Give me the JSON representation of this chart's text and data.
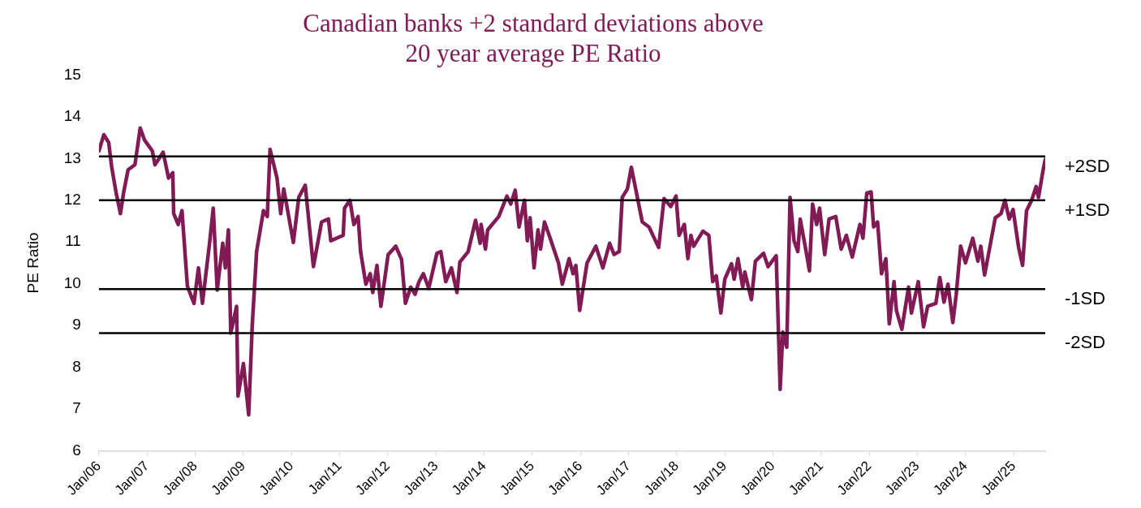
{
  "chart_data": {
    "type": "line",
    "title": "Canadian banks +2 standard deviations above\n20 year average PE Ratio",
    "ylabel": "PE Ratio",
    "x": [
      "2006-01-01",
      "2006-02-07",
      "2006-03-16",
      "2006-04-08",
      "2006-05-10",
      "2006-06-13",
      "2006-07-08",
      "2006-08-10",
      "2006-10-01",
      "2006-11-10",
      "2006-12-13",
      "2007-02-10",
      "2007-03-02",
      "2007-05-03",
      "2007-06-13",
      "2007-07-15",
      "2007-07-22",
      "2007-08-25",
      "2007-09-23",
      "2007-11-03",
      "2007-12-23",
      "2008-01-26",
      "2008-02-25",
      "2008-04-19",
      "2008-05-17",
      "2008-06-16",
      "2008-07-28",
      "2008-08-17",
      "2008-09-09",
      "2008-09-27",
      "2008-11-10",
      "2008-11-21",
      "2009-01-01",
      "2009-02-10",
      "2009-03-09",
      "2009-04-11",
      "2009-06-02",
      "2009-07-01",
      "2009-07-22",
      "2009-09-13",
      "2009-10-11",
      "2009-11-03",
      "2010-01-15",
      "2010-02-25",
      "2010-04-15",
      "2010-06-16",
      "2010-08-17",
      "2010-10-08",
      "2010-10-26",
      "2011-01-28",
      "2011-02-07",
      "2011-03-20",
      "2011-04-19",
      "2011-05-21",
      "2011-06-09",
      "2011-07-19",
      "2011-08-21",
      "2011-09-09",
      "2011-10-11",
      "2011-11-10",
      "2012-01-04",
      "2012-03-02",
      "2012-04-15",
      "2012-05-14",
      "2012-06-23",
      "2012-07-26",
      "2012-08-25",
      "2012-09-27",
      "2012-11-07",
      "2013-01-08",
      "2013-02-07",
      "2013-03-16",
      "2013-04-28",
      "2013-06-09",
      "2013-07-01",
      "2013-09-02",
      "2013-10-28",
      "2013-12-02",
      "2013-12-09",
      "2014-01-11",
      "2014-01-28",
      "2014-04-22",
      "2014-06-23",
      "2014-07-22",
      "2014-08-25",
      "2014-09-23",
      "2014-11-03",
      "2014-11-25",
      "2014-12-16",
      "2015-01-15",
      "2015-02-14",
      "2015-03-05",
      "2015-04-04",
      "2015-05-17",
      "2015-07-19",
      "2015-08-17",
      "2015-10-08",
      "2015-11-07",
      "2015-11-28",
      "2015-12-27",
      "2016-02-21",
      "2016-04-28",
      "2016-06-20",
      "2016-08-10",
      "2016-09-13",
      "2016-10-22",
      "2016-11-14",
      "2016-12-23",
      "2017-01-22",
      "2017-03-13",
      "2017-04-15",
      "2017-06-05",
      "2017-08-17",
      "2017-09-27",
      "2017-11-17",
      "2017-12-27",
      "2018-01-19",
      "2018-02-28",
      "2018-03-27",
      "2018-04-19",
      "2018-05-10",
      "2018-07-19",
      "2018-09-02",
      "2018-10-01",
      "2018-10-28",
      "2018-12-02",
      "2019-01-01",
      "2019-02-21",
      "2019-03-13",
      "2019-04-11",
      "2019-05-17",
      "2019-06-02",
      "2019-07-22",
      "2019-08-21",
      "2019-10-22",
      "2019-11-25",
      "2020-01-26",
      "2020-02-25",
      "2020-03-16",
      "2020-04-15",
      "2020-05-10",
      "2020-06-09",
      "2020-07-08",
      "2020-07-26",
      "2020-09-09",
      "2020-10-04",
      "2020-10-28",
      "2020-11-28",
      "2020-12-20",
      "2021-01-28",
      "2021-03-02",
      "2021-04-22",
      "2021-06-02",
      "2021-07-11",
      "2021-08-25",
      "2021-10-22",
      "2021-11-14",
      "2021-12-13",
      "2022-01-15",
      "2022-02-03",
      "2022-03-05",
      "2022-04-04",
      "2022-05-07",
      "2022-06-02",
      "2022-07-08",
      "2022-07-26",
      "2022-09-05",
      "2022-10-26",
      "2022-11-17",
      "2023-01-08",
      "2023-02-17",
      "2023-03-20",
      "2023-05-21",
      "2023-06-20",
      "2023-07-22",
      "2023-08-21",
      "2023-09-27",
      "2023-10-22",
      "2023-11-25",
      "2024-01-01",
      "2024-02-25",
      "2024-04-04",
      "2024-04-26",
      "2024-05-25",
      "2024-06-23",
      "2024-08-14",
      "2024-09-27",
      "2024-10-26",
      "2024-11-28",
      "2024-12-27",
      "2025-02-07",
      "2025-03-09",
      "2025-04-08",
      "2025-05-17",
      "2025-06-20",
      "2025-07-08",
      "2025-08-10",
      "2025-08-28"
    ],
    "series": [
      {
        "color": "#821a55",
        "values": [
          13.18,
          13.57,
          13.38,
          12.79,
          12.2,
          11.68,
          12.2,
          12.73,
          12.85,
          13.73,
          13.44,
          13.18,
          12.85,
          13.15,
          12.53,
          12.66,
          11.68,
          11.42,
          11.75,
          9.94,
          9.53,
          10.38,
          9.53,
          10.97,
          11.81,
          9.85,
          10.97,
          10.38,
          11.29,
          8.82,
          9.46,
          7.31,
          8.09,
          6.86,
          9.01,
          10.77,
          11.75,
          11.61,
          13.22,
          12.53,
          11.68,
          12.27,
          10.99,
          12.07,
          12.36,
          10.41,
          11.48,
          11.55,
          11.03,
          11.16,
          11.81,
          12.0,
          11.42,
          11.61,
          10.77,
          9.99,
          10.24,
          9.79,
          10.44,
          9.46,
          10.7,
          10.9,
          10.58,
          9.53,
          9.92,
          9.75,
          10.05,
          10.24,
          9.89,
          10.73,
          10.77,
          10.05,
          10.38,
          9.79,
          10.52,
          10.77,
          11.52,
          10.97,
          11.42,
          10.83,
          11.29,
          11.61,
          12.1,
          11.91,
          12.24,
          11.36,
          12.0,
          11.03,
          11.58,
          10.38,
          11.29,
          10.83,
          11.48,
          11.09,
          10.5,
          9.99,
          10.6,
          10.24,
          10.44,
          9.36,
          10.5,
          10.9,
          10.38,
          10.97,
          10.7,
          10.77,
          12.07,
          12.27,
          12.79,
          12.0,
          11.48,
          11.36,
          10.87,
          12.04,
          11.85,
          12.1,
          11.16,
          11.42,
          10.6,
          11.16,
          10.9,
          11.26,
          11.16,
          10.05,
          10.19,
          9.3,
          10.11,
          10.48,
          10.11,
          10.6,
          9.92,
          10.28,
          9.62,
          10.54,
          10.73,
          10.41,
          10.67,
          7.47,
          8.84,
          8.48,
          12.07,
          11.03,
          10.77,
          11.55,
          10.77,
          10.31,
          11.91,
          11.42,
          11.81,
          10.7,
          11.55,
          11.61,
          10.83,
          11.16,
          10.64,
          11.42,
          11.09,
          12.17,
          12.2,
          11.36,
          11.48,
          10.24,
          10.6,
          9.04,
          10.05,
          9.36,
          8.91,
          9.92,
          9.3,
          10.05,
          8.97,
          9.46,
          9.53,
          10.15,
          9.56,
          9.99,
          9.07,
          9.72,
          10.9,
          10.5,
          11.09,
          10.54,
          10.9,
          10.21,
          10.7,
          11.58,
          11.68,
          12.0,
          11.55,
          11.78,
          10.87,
          10.44,
          11.75,
          12.0,
          12.33,
          12.07,
          12.69,
          12.98
        ]
      }
    ],
    "xlim": [
      "2006-01-01",
      "2025-08-28"
    ],
    "xticks": [
      {
        "value": "2006-01",
        "label": "Jan/06"
      },
      {
        "value": "2007-01",
        "label": "Jan/07"
      },
      {
        "value": "2008-01",
        "label": "Jan/08"
      },
      {
        "value": "2009-01",
        "label": "Jan/09"
      },
      {
        "value": "2010-01",
        "label": "Jan/10"
      },
      {
        "value": "2011-01",
        "label": "Jan/11"
      },
      {
        "value": "2012-01",
        "label": "Jan/12"
      },
      {
        "value": "2013-01",
        "label": "Jan/13"
      },
      {
        "value": "2014-01",
        "label": "Jan/14"
      },
      {
        "value": "2015-01",
        "label": "Jan/15"
      },
      {
        "value": "2016-01",
        "label": "Jan/16"
      },
      {
        "value": "2017-01",
        "label": "Jan/17"
      },
      {
        "value": "2018-01",
        "label": "Jan/18"
      },
      {
        "value": "2019-01",
        "label": "Jan/19"
      },
      {
        "value": "2020-01",
        "label": "Jan/20"
      },
      {
        "value": "2021-01",
        "label": "Jan/21"
      },
      {
        "value": "2022-01",
        "label": "Jan/22"
      },
      {
        "value": "2023-01",
        "label": "Jan/23"
      },
      {
        "value": "2024-01",
        "label": "Jan/24"
      },
      {
        "value": "2025-01",
        "label": "Jan/25"
      }
    ],
    "ylim": [
      6,
      15
    ],
    "yticks": [
      6,
      7,
      8,
      9,
      10,
      11,
      12,
      13,
      14,
      15
    ],
    "ref_lines": [
      {
        "axis": "y",
        "value": 13.05,
        "label": "+2SD",
        "color": "#000000"
      },
      {
        "axis": "y",
        "value": 12.0,
        "label": "+1SD",
        "color": "#000000"
      },
      {
        "axis": "y",
        "value": 9.87,
        "label": "-1SD",
        "color": "#000000"
      },
      {
        "axis": "y",
        "value": 8.82,
        "label": "-2SD",
        "color": "#000000"
      }
    ],
    "grid": false,
    "legend": false,
    "marker": "none",
    "line_style": "solid"
  }
}
